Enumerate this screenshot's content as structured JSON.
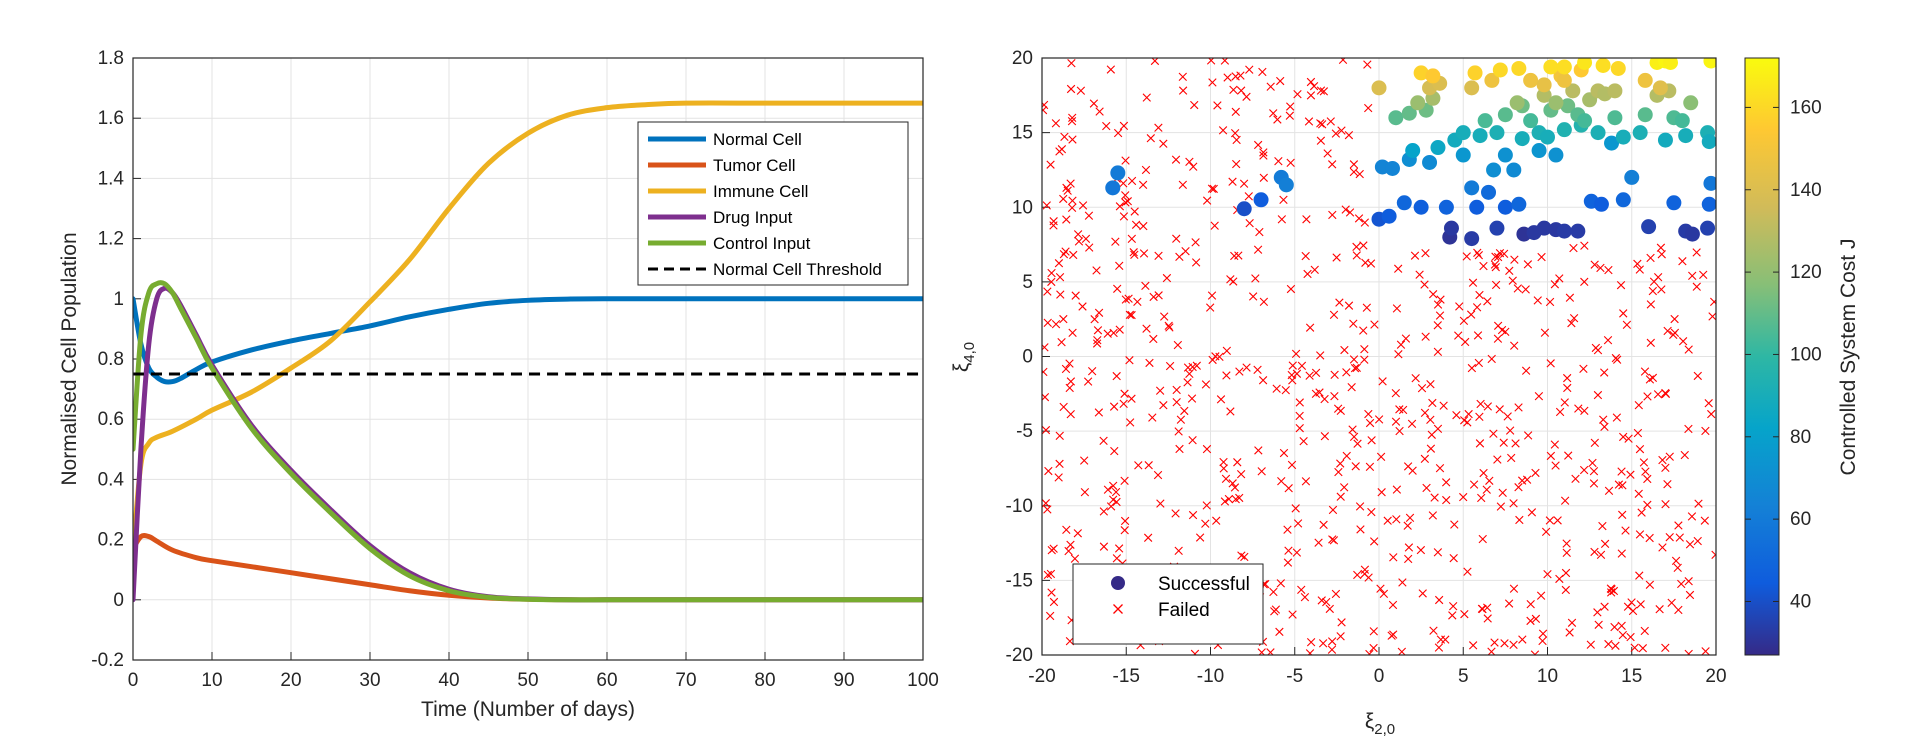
{
  "chart_data": [
    {
      "type": "line",
      "xlabel": "Time (Number of days)",
      "ylabel": "Normalised Cell Population",
      "xlim": [
        0,
        100
      ],
      "ylim": [
        -0.2,
        1.8
      ],
      "xticks": [
        "0",
        "10",
        "20",
        "30",
        "40",
        "50",
        "60",
        "70",
        "80",
        "90",
        "100"
      ],
      "yticks": [
        "-0.2",
        "0",
        "0.2",
        "0.4",
        "0.6",
        "0.8",
        "1",
        "1.2",
        "1.4",
        "1.6",
        "1.8"
      ],
      "grid": true,
      "legend_position": "top-right",
      "series": [
        {
          "name": "Normal Cell",
          "color": "#0072BD",
          "x": [
            0,
            1,
            2,
            3,
            4,
            5,
            6,
            8,
            10,
            15,
            20,
            25,
            30,
            35,
            40,
            45,
            50,
            55,
            60,
            70,
            80,
            90,
            100
          ],
          "y": [
            1.0,
            0.85,
            0.77,
            0.74,
            0.725,
            0.725,
            0.735,
            0.765,
            0.79,
            0.83,
            0.86,
            0.885,
            0.91,
            0.94,
            0.965,
            0.985,
            0.995,
            0.999,
            1.0,
            1.0,
            1.0,
            1.0,
            1.0
          ]
        },
        {
          "name": "Tumor Cell",
          "color": "#D95319",
          "x": [
            0,
            1,
            2,
            3,
            5,
            8,
            10,
            15,
            20,
            25,
            30,
            35,
            40,
            45,
            50,
            55,
            60,
            70,
            80,
            90,
            100
          ],
          "y": [
            0.17,
            0.21,
            0.21,
            0.195,
            0.165,
            0.14,
            0.13,
            0.11,
            0.09,
            0.07,
            0.05,
            0.03,
            0.015,
            0.006,
            0.002,
            0.0,
            0.0,
            0.0,
            0.0,
            0.0,
            0.0
          ]
        },
        {
          "name": "Immune Cell",
          "color": "#EDB120",
          "x": [
            0,
            1,
            2,
            3,
            5,
            8,
            10,
            15,
            20,
            25,
            30,
            35,
            40,
            45,
            50,
            55,
            60,
            65,
            70,
            80,
            90,
            100
          ],
          "y": [
            0.16,
            0.45,
            0.52,
            0.54,
            0.56,
            0.6,
            0.63,
            0.69,
            0.77,
            0.86,
            0.99,
            1.13,
            1.3,
            1.45,
            1.55,
            1.61,
            1.635,
            1.645,
            1.65,
            1.65,
            1.65,
            1.65
          ]
        },
        {
          "name": "Drug Input",
          "color": "#7E2F8E",
          "x": [
            0,
            1,
            2,
            3,
            4,
            5,
            6,
            8,
            10,
            15,
            20,
            25,
            30,
            35,
            40,
            45,
            50,
            55,
            60,
            65,
            70,
            80,
            90,
            100
          ],
          "y": [
            0.0,
            0.5,
            0.85,
            1.0,
            1.035,
            1.02,
            0.98,
            0.88,
            0.78,
            0.58,
            0.43,
            0.3,
            0.18,
            0.09,
            0.035,
            0.01,
            0.003,
            0.0,
            0.0,
            0.0,
            0.0,
            0.0,
            0.0,
            0.0
          ]
        },
        {
          "name": "Control Input",
          "color": "#77AC30",
          "x": [
            0,
            1,
            2,
            3,
            4,
            5,
            6,
            8,
            10,
            15,
            20,
            25,
            30,
            35,
            40,
            45,
            50,
            55,
            60,
            65,
            70,
            80,
            90,
            100
          ],
          "y": [
            0.5,
            0.88,
            1.02,
            1.05,
            1.05,
            1.02,
            0.97,
            0.87,
            0.77,
            0.57,
            0.42,
            0.29,
            0.17,
            0.08,
            0.03,
            0.008,
            0.002,
            0.0,
            0.0,
            0.0,
            0.0,
            0.0,
            0.0,
            0.0
          ]
        },
        {
          "name": "Normal Cell Threshold",
          "color": "#000000",
          "dashed": true,
          "x": [
            0,
            100
          ],
          "y": [
            0.75,
            0.75
          ]
        }
      ]
    },
    {
      "type": "scatter",
      "xlabel": "ξ2,0",
      "ylabel": "ξ4,0",
      "xlim": [
        -20,
        20
      ],
      "ylim": [
        -20,
        20
      ],
      "xticks": [
        "-20",
        "-15",
        "-10",
        "-5",
        "0",
        "5",
        "10",
        "15",
        "20"
      ],
      "yticks": [
        "-20",
        "-15",
        "-10",
        "-5",
        "0",
        "5",
        "10",
        "15",
        "20"
      ],
      "grid": true,
      "legend_position": "bottom-left",
      "colorbar": {
        "label": "Controlled System Cost J",
        "ticks": [
          "40",
          "60",
          "80",
          "100",
          "120",
          "140",
          "160"
        ],
        "range": [
          27,
          172
        ]
      },
      "series": [
        {
          "name": "Successful",
          "marker": "circle",
          "color": "#352A87",
          "points": [
            [
              -15.8,
              11.3,
              58
            ],
            [
              -15.5,
              12.3,
              60
            ],
            [
              -8.0,
              9.9,
              40
            ],
            [
              -7.0,
              10.5,
              45
            ],
            [
              -5.8,
              12.0,
              60
            ],
            [
              -5.5,
              11.5,
              62
            ],
            [
              0.2,
              12.7,
              65
            ],
            [
              0.8,
              12.6,
              65
            ],
            [
              0.0,
              9.2,
              42
            ],
            [
              0.6,
              9.4,
              45
            ],
            [
              1.5,
              10.3,
              50
            ],
            [
              2.5,
              10.0,
              46
            ],
            [
              4.0,
              10.0,
              48
            ],
            [
              4.2,
              8.0,
              30
            ],
            [
              4.3,
              8.6,
              32
            ],
            [
              5.5,
              7.9,
              33
            ],
            [
              5.8,
              10.0,
              45
            ],
            [
              6.5,
              11.0,
              52
            ],
            [
              7.0,
              8.6,
              35
            ],
            [
              7.5,
              10.0,
              45
            ],
            [
              8.3,
              10.2,
              50
            ],
            [
              8.6,
              8.2,
              30
            ],
            [
              9.2,
              8.3,
              32
            ],
            [
              9.8,
              8.6,
              32
            ],
            [
              10.5,
              8.5,
              32
            ],
            [
              11.0,
              8.4,
              33
            ],
            [
              11.8,
              8.4,
              33
            ],
            [
              12.6,
              10.4,
              48
            ],
            [
              13.2,
              10.2,
              45
            ],
            [
              14.5,
              10.5,
              50
            ],
            [
              15.0,
              12.0,
              62
            ],
            [
              16.0,
              8.7,
              35
            ],
            [
              17.5,
              10.3,
              48
            ],
            [
              18.2,
              8.4,
              33
            ],
            [
              18.6,
              8.2,
              32
            ],
            [
              19.5,
              8.6,
              35
            ],
            [
              19.6,
              10.2,
              48
            ],
            [
              19.7,
              11.6,
              58
            ],
            [
              5.5,
              11.3,
              60
            ],
            [
              6.8,
              12.5,
              70
            ],
            [
              7.5,
              13.5,
              72
            ],
            [
              9.5,
              13.8,
              74
            ],
            [
              10.5,
              13.5,
              72
            ],
            [
              13.8,
              14.3,
              75
            ],
            [
              1.8,
              13.2,
              70
            ],
            [
              3.0,
              13.0,
              68
            ],
            [
              5.0,
              13.5,
              75
            ],
            [
              8.0,
              12.5,
              68
            ],
            [
              2.0,
              13.8,
              82
            ],
            [
              3.5,
              14.0,
              85
            ],
            [
              4.5,
              14.5,
              88
            ],
            [
              5.0,
              15.0,
              90
            ],
            [
              6.0,
              14.8,
              90
            ],
            [
              7.0,
              15.0,
              92
            ],
            [
              8.5,
              14.6,
              90
            ],
            [
              9.5,
              15.0,
              92
            ],
            [
              10.0,
              14.7,
              90
            ],
            [
              11.0,
              15.2,
              94
            ],
            [
              12.0,
              15.5,
              95
            ],
            [
              13.0,
              15.0,
              92
            ],
            [
              14.5,
              14.7,
              90
            ],
            [
              15.5,
              15.0,
              92
            ],
            [
              17.0,
              14.5,
              88
            ],
            [
              18.2,
              14.8,
              90
            ],
            [
              19.5,
              15.0,
              92
            ],
            [
              19.6,
              14.4,
              88
            ],
            [
              1.0,
              16.0,
              108
            ],
            [
              1.8,
              16.3,
              110
            ],
            [
              2.8,
              16.5,
              112
            ],
            [
              6.3,
              15.8,
              105
            ],
            [
              7.5,
              16.2,
              108
            ],
            [
              8.5,
              16.8,
              112
            ],
            [
              9.0,
              15.8,
              104
            ],
            [
              10.2,
              16.5,
              110
            ],
            [
              11.2,
              16.8,
              112
            ],
            [
              11.8,
              16.2,
              108
            ],
            [
              12.2,
              15.8,
              104
            ],
            [
              14.0,
              16.0,
              106
            ],
            [
              15.8,
              16.2,
              108
            ],
            [
              17.5,
              16.0,
              106
            ],
            [
              18.0,
              15.8,
              104
            ],
            [
              18.5,
              17.0,
              118
            ],
            [
              2.3,
              17.0,
              122
            ],
            [
              3.2,
              17.3,
              125
            ],
            [
              8.2,
              17.0,
              122
            ],
            [
              9.8,
              17.5,
              128
            ],
            [
              10.5,
              17.0,
              122
            ],
            [
              11.5,
              17.8,
              130
            ],
            [
              12.5,
              17.2,
              125
            ],
            [
              13.0,
              17.8,
              130
            ],
            [
              13.4,
              17.6,
              128
            ],
            [
              14.0,
              17.8,
              130
            ],
            [
              16.5,
              17.5,
              128
            ],
            [
              17.2,
              17.8,
              130
            ],
            [
              0.0,
              18.0,
              140
            ],
            [
              3.0,
              18.0,
              138
            ],
            [
              3.6,
              18.3,
              140
            ],
            [
              5.5,
              18.0,
              140
            ],
            [
              6.7,
              18.5,
              148
            ],
            [
              9.0,
              18.5,
              148
            ],
            [
              9.8,
              18.2,
              145
            ],
            [
              10.8,
              18.8,
              150
            ],
            [
              11.0,
              18.5,
              148
            ],
            [
              12.0,
              19.2,
              155
            ],
            [
              15.8,
              18.5,
              148
            ],
            [
              16.7,
              18.0,
              142
            ],
            [
              2.5,
              19.0,
              158
            ],
            [
              3.2,
              18.8,
              155
            ],
            [
              5.7,
              19.0,
              158
            ],
            [
              7.2,
              19.2,
              160
            ],
            [
              8.3,
              19.3,
              160
            ],
            [
              10.2,
              19.4,
              162
            ],
            [
              11.0,
              19.4,
              162
            ],
            [
              12.2,
              19.7,
              165
            ],
            [
              13.3,
              19.5,
              162
            ],
            [
              14.2,
              19.3,
              160
            ],
            [
              16.5,
              19.7,
              168
            ],
            [
              17.0,
              19.8,
              170
            ],
            [
              19.7,
              19.8,
              170
            ],
            [
              17.3,
              19.7,
              168
            ]
          ]
        },
        {
          "name": "Failed",
          "marker": "x",
          "color": "#FF0000",
          "count": 800
        }
      ]
    }
  ]
}
